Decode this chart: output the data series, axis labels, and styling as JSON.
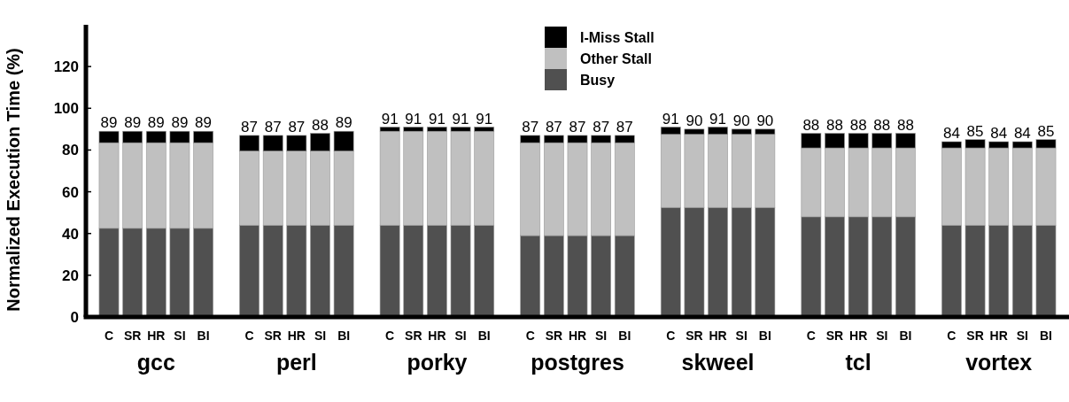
{
  "chart_data": {
    "type": "bar",
    "stacked": true,
    "ylabel": "Normalized Execution Time (%)",
    "ylim": [
      0,
      140
    ],
    "yticks": [
      0,
      20,
      40,
      60,
      80,
      100,
      120
    ],
    "categories": [
      "C",
      "SR",
      "HR",
      "SI",
      "BI",
      "C",
      "SR",
      "HR",
      "SI",
      "BI",
      "C",
      "SR",
      "HR",
      "SI",
      "BI",
      "C",
      "SR",
      "HR",
      "SI",
      "BI",
      "C",
      "SR",
      "HR",
      "SI",
      "BI",
      "C",
      "SR",
      "HR",
      "SI",
      "BI",
      "C",
      "SR",
      "HR",
      "SI",
      "BI"
    ],
    "annotations": [
      "gcc",
      "perl",
      "porky",
      "postgres",
      "skweel",
      "tcl",
      "vortex"
    ],
    "series": [
      {
        "name": "Busy",
        "color": "#505050",
        "values": [
          42.5,
          42.5,
          42.5,
          42.5,
          42.5,
          44,
          44,
          44,
          44,
          44,
          44,
          44,
          44,
          44,
          44,
          39,
          39,
          39,
          39,
          39,
          52.5,
          52.5,
          52.5,
          52.5,
          52.5,
          48,
          48,
          48,
          48,
          48,
          44,
          44,
          44,
          44,
          44
        ]
      },
      {
        "name": "Other Stall",
        "color": "#c0c0c0",
        "values": [
          41,
          41,
          41,
          41,
          41,
          35.5,
          35.5,
          35.5,
          35.5,
          35.5,
          45,
          45,
          45,
          45,
          45,
          44.5,
          44.5,
          44.5,
          44.5,
          44.5,
          35,
          35,
          35,
          35,
          35,
          33,
          33,
          33,
          33,
          33,
          37,
          37,
          37,
          37,
          37
        ]
      },
      {
        "name": "I-Miss Stall",
        "color": "#000000",
        "values": [
          5.5,
          5.5,
          5.5,
          5.5,
          5.5,
          7.5,
          7.5,
          7.5,
          8.5,
          9.5,
          2,
          2,
          2,
          2,
          2,
          3.5,
          3.5,
          3.5,
          3.5,
          3.5,
          3.5,
          2.5,
          3.5,
          2.5,
          2.5,
          7,
          7,
          7,
          7,
          7,
          3,
          4,
          3,
          3,
          4
        ]
      }
    ],
    "totals": [
      "89",
      "89",
      "89",
      "89",
      "89",
      "87",
      "87",
      "87",
      "88",
      "89",
      "91",
      "91",
      "91",
      "91",
      "91",
      "87",
      "87",
      "87",
      "87",
      "87",
      "91",
      "90",
      "91",
      "90",
      "90",
      "88",
      "88",
      "88",
      "88",
      "88",
      "84",
      "85",
      "84",
      "84",
      "85"
    ],
    "legend": "top"
  }
}
